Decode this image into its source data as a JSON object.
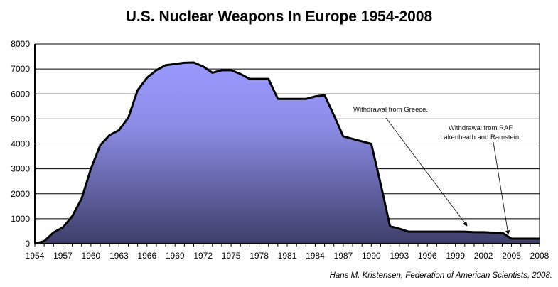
{
  "chart_data": {
    "type": "area",
    "title": "U.S. Nuclear Weapons In Europe 1954-2008",
    "xlabel": "",
    "ylabel": "",
    "xlim": [
      1954,
      2008
    ],
    "ylim": [
      0,
      8000
    ],
    "grid": true,
    "x_ticks": [
      1954,
      1957,
      1960,
      1963,
      1966,
      1969,
      1972,
      1975,
      1978,
      1981,
      1984,
      1987,
      1990,
      1993,
      1996,
      1999,
      2002,
      2005,
      2008
    ],
    "y_ticks": [
      0,
      1000,
      2000,
      3000,
      4000,
      5000,
      6000,
      7000,
      8000
    ],
    "series": [
      {
        "name": "U.S. Nuclear Weapons In Europe",
        "x": [
          1954,
          1955,
          1956,
          1957,
          1958,
          1959,
          1960,
          1961,
          1962,
          1963,
          1964,
          1965,
          1966,
          1967,
          1968,
          1969,
          1970,
          1971,
          1972,
          1973,
          1974,
          1975,
          1976,
          1977,
          1978,
          1979,
          1980,
          1981,
          1982,
          1983,
          1984,
          1985,
          1986,
          1987,
          1988,
          1989,
          1990,
          1991,
          1992,
          1993,
          1994,
          1995,
          1996,
          1997,
          1998,
          1999,
          2000,
          2001,
          2002,
          2003,
          2004,
          2005,
          2006,
          2007,
          2008
        ],
        "y": [
          0,
          100,
          450,
          650,
          1100,
          1800,
          3000,
          3950,
          4350,
          4550,
          5050,
          6150,
          6650,
          6950,
          7150,
          7200,
          7250,
          7260,
          7100,
          6850,
          6950,
          6950,
          6800,
          6600,
          6600,
          6600,
          5800,
          5800,
          5800,
          5800,
          5900,
          5950,
          5150,
          4300,
          4200,
          4100,
          4000,
          2400,
          700,
          600,
          480,
          480,
          480,
          480,
          480,
          480,
          480,
          460,
          460,
          440,
          440,
          200,
          200,
          200,
          200
        ]
      }
    ],
    "annotations": [
      {
        "text": "Withdrawal from Greece.",
        "x": 2000,
        "y": 480
      },
      {
        "text": [
          "Withdrawal from RAF",
          "Lakenheath and Ramstein."
        ],
        "x": 2004.5,
        "y": 300
      }
    ]
  },
  "credit": "Hans M. Kristensen,  Federation of American Scientists, 2008.",
  "colors": {
    "fill_top": "#9a9aff",
    "fill_bottom": "#3e3e6a",
    "line": "#000000"
  }
}
